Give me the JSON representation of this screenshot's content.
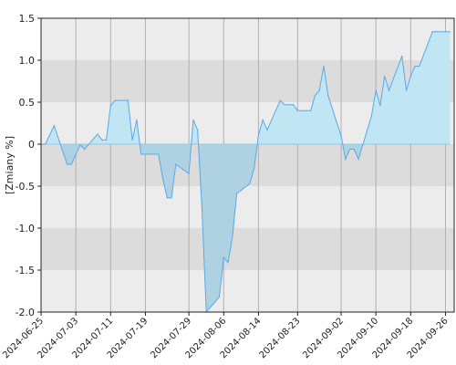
{
  "chart_data": {
    "type": "area",
    "title": "",
    "ylabel": "[Zmiany %]",
    "xlabel": "",
    "ylim": [
      -2.0,
      1.5
    ],
    "xlim": [
      "2024-06-25",
      "2024-09-28"
    ],
    "grid": true,
    "y_ticks": [
      1.5,
      1.0,
      0.5,
      0,
      -0.5,
      -1.0,
      -1.5,
      -2.0
    ],
    "y_tick_labels": [
      "1.5",
      "1.0",
      "0.5",
      "0",
      "-0.5",
      "-1.0",
      "-1.5",
      "-2.0"
    ],
    "x_ticks": [
      "2024-06-25",
      "2024-07-03",
      "2024-07-11",
      "2024-07-19",
      "2024-07-29",
      "2024-08-06",
      "2024-08-14",
      "2024-08-23",
      "2024-09-02",
      "2024-09-10",
      "2024-09-18",
      "2024-09-26"
    ],
    "colors": {
      "line": "#5ba8e6",
      "fill_above": "#bfe6f2",
      "fill_below": "#aed2e2",
      "band_light": "#ececec",
      "band_dark": "#dcdcdc",
      "grid": "#b0b0b0",
      "zero_line": "#8ccfe4",
      "axis": "#222222"
    },
    "series": [
      {
        "x": [
          "2024-06-25",
          "2024-06-26",
          "2024-06-28",
          "2024-07-01",
          "2024-07-02",
          "2024-07-03",
          "2024-07-04",
          "2024-07-05",
          "2024-07-08",
          "2024-07-09",
          "2024-07-10",
          "2024-07-11",
          "2024-07-12",
          "2024-07-15",
          "2024-07-16",
          "2024-07-17",
          "2024-07-18",
          "2024-07-19",
          "2024-07-22",
          "2024-07-23",
          "2024-07-24",
          "2024-07-25",
          "2024-07-26",
          "2024-07-29",
          "2024-07-30",
          "2024-07-31",
          "2024-08-01",
          "2024-08-02",
          "2024-08-05",
          "2024-08-06",
          "2024-08-07",
          "2024-08-08",
          "2024-08-09",
          "2024-08-12",
          "2024-08-13",
          "2024-08-14",
          "2024-08-15",
          "2024-08-16",
          "2024-08-19",
          "2024-08-20",
          "2024-08-21",
          "2024-08-22",
          "2024-08-23",
          "2024-08-26",
          "2024-08-27",
          "2024-08-28",
          "2024-08-29",
          "2024-08-30",
          "2024-09-02",
          "2024-09-03",
          "2024-09-04",
          "2024-09-05",
          "2024-09-06",
          "2024-09-09",
          "2024-09-10",
          "2024-09-11",
          "2024-09-12",
          "2024-09-13",
          "2024-09-16",
          "2024-09-17",
          "2024-09-18",
          "2024-09-19",
          "2024-09-20",
          "2024-09-23",
          "2024-09-24",
          "2024-09-25",
          "2024-09-26",
          "2024-09-27"
        ],
        "values": [
          0.0,
          0.0,
          0.22,
          -0.24,
          -0.24,
          -0.12,
          -0.01,
          -0.06,
          0.12,
          0.05,
          0.05,
          0.46,
          0.52,
          0.52,
          0.05,
          0.29,
          -0.12,
          -0.12,
          -0.12,
          -0.41,
          -0.64,
          -0.64,
          -0.24,
          -0.35,
          0.29,
          0.17,
          -0.76,
          -2.0,
          -1.82,
          -1.35,
          -1.41,
          -1.11,
          -0.59,
          -0.47,
          -0.29,
          0.11,
          0.29,
          0.17,
          0.52,
          0.47,
          0.47,
          0.47,
          0.4,
          0.4,
          0.58,
          0.64,
          0.93,
          0.58,
          0.1,
          -0.18,
          -0.06,
          -0.06,
          -0.18,
          0.34,
          0.64,
          0.46,
          0.81,
          0.64,
          1.05,
          0.64,
          0.81,
          0.93,
          0.93,
          1.34,
          1.34,
          1.34,
          1.34,
          1.34
        ]
      }
    ]
  }
}
